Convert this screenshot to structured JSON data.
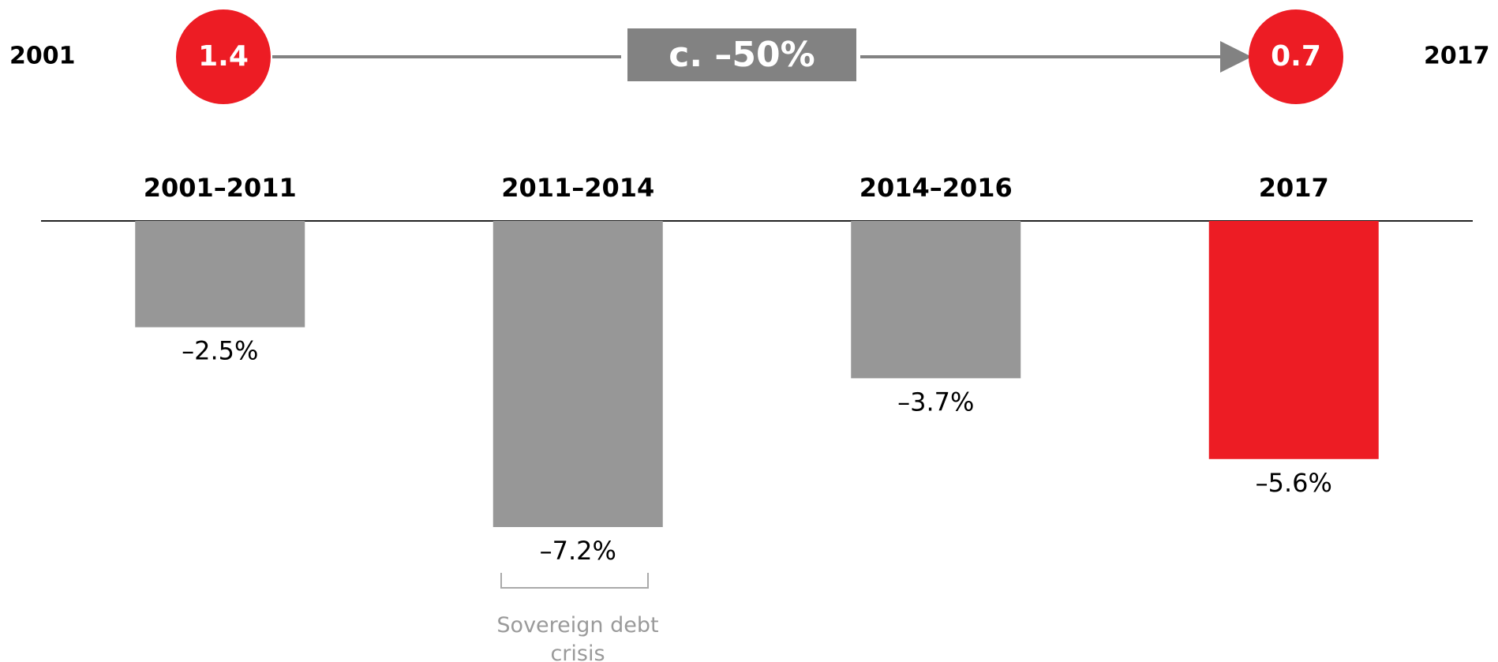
{
  "chart_data": {
    "type": "bar",
    "header": {
      "start_label": "2001",
      "start_value": 1.4,
      "change": "c. –50%",
      "end_value": 0.7,
      "end_label": "2017",
      "circle_color": "#ed1c24",
      "change_color": "#828282"
    },
    "categories": [
      "2001–2011",
      "2011–2014",
      "2014–2016",
      "2017"
    ],
    "values": [
      -2.5,
      -7.2,
      -3.7,
      -5.6
    ],
    "value_labels": [
      "–2.5%",
      "–7.2%",
      "–3.7%",
      "–5.6%"
    ],
    "colors": [
      "#979797",
      "#979797",
      "#979797",
      "#ed1c24"
    ],
    "annotation": "Sovereign debt crisis"
  }
}
